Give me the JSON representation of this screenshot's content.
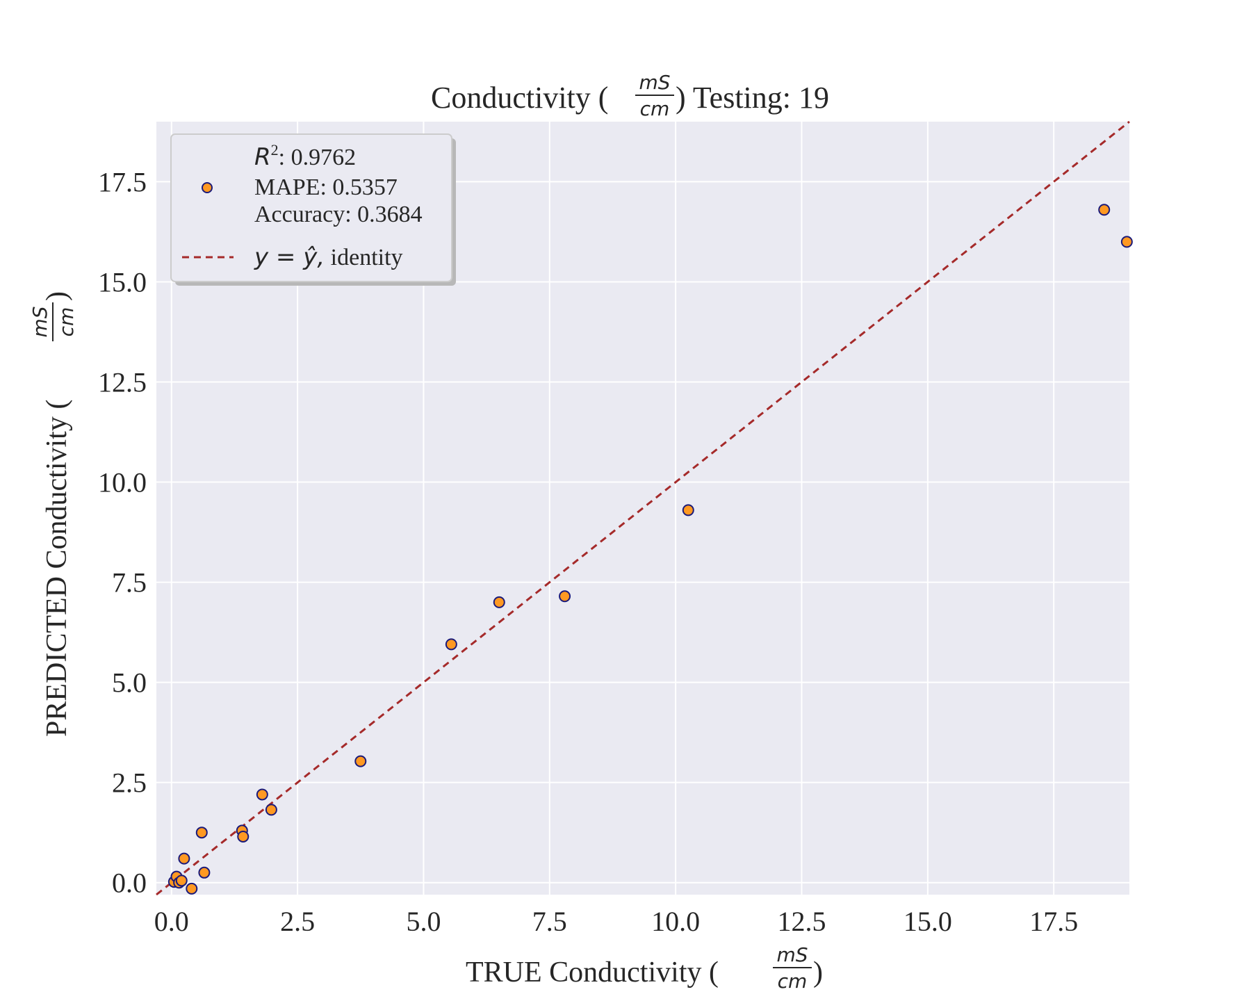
{
  "chart_data": {
    "type": "scatter",
    "title": {
      "prefix": "Conductivity (",
      "unit_num": "mS",
      "unit_den": "cm",
      "suffix": ") Testing: 19"
    },
    "xlabel": {
      "text": "TRUE Conductivity (",
      "unit_num": "mS",
      "unit_den": "cm",
      "close": ")"
    },
    "ylabel": {
      "text": "PREDICTED Conductivity (",
      "unit_num": "mS",
      "unit_den": "cm",
      "close": ")"
    },
    "xlim": [
      -0.3,
      19.0
    ],
    "ylim": [
      -0.3,
      19.0
    ],
    "xticks": [
      0.0,
      2.5,
      5.0,
      7.5,
      10.0,
      12.5,
      15.0,
      17.5
    ],
    "yticks": [
      0.0,
      2.5,
      5.0,
      7.5,
      10.0,
      12.5,
      15.0,
      17.5
    ],
    "xtick_labels": [
      "0.0",
      "2.5",
      "5.0",
      "7.5",
      "10.0",
      "12.5",
      "15.0",
      "17.5"
    ],
    "ytick_labels": [
      "0.0",
      "2.5",
      "5.0",
      "7.5",
      "10.0",
      "12.5",
      "15.0",
      "17.5"
    ],
    "grid": true,
    "legend_placement": "top-left",
    "series": [
      {
        "kind": "scatter",
        "color": "#ff9922",
        "edge_color": "#1a1a7a",
        "x": [
          0.05,
          0.1,
          0.15,
          0.2,
          0.25,
          0.4,
          0.6,
          0.65,
          1.4,
          1.42,
          1.8,
          1.98,
          3.75,
          5.55,
          6.5,
          7.8,
          10.25,
          18.5,
          18.95
        ],
        "y": [
          0.02,
          0.15,
          0.0,
          0.05,
          0.6,
          -0.15,
          1.25,
          0.25,
          1.3,
          1.15,
          2.2,
          1.82,
          3.03,
          5.95,
          7.0,
          7.15,
          9.3,
          16.8,
          16.0
        ]
      },
      {
        "kind": "line",
        "color": "#a52a2a",
        "style": "dashed",
        "x": [
          -0.3,
          19.0
        ],
        "y": [
          -0.3,
          19.0
        ]
      }
    ],
    "legend": {
      "r2_symbol": "R",
      "r2_sup": "2",
      "r2_value": ": 0.9762",
      "mape": "MAPE: 0.5357",
      "accuracy": "Accuracy: 0.3684",
      "identity_math": "y = ŷ,",
      "identity_text": " identity"
    }
  }
}
